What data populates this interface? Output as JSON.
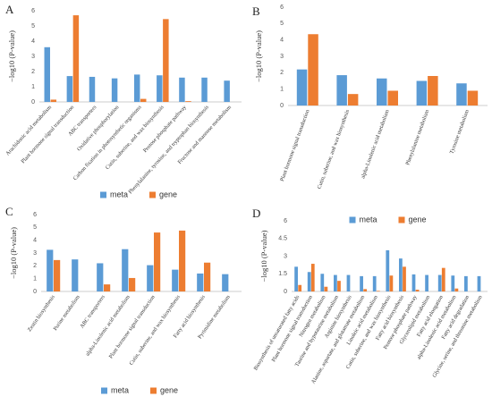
{
  "chart_data": [
    {
      "type": "bar",
      "label": "A",
      "y_label": "−log10 (P-value)",
      "categories": [
        "Arachidonic acid metabolism",
        "Plant hormone signal transduction",
        "ABC transporters",
        "Oxidative phosphorylation",
        "Carbon fixation in photosynthetic organisms",
        "Cutin, suberine, and wax biosynthesis",
        "Pentose phosphate pathway",
        "Phenylalanine, tyrosine, and tryptophan biosynthesis",
        "Fructose and mannose metabolism"
      ],
      "series": [
        {
          "name": "meta",
          "color": "#5b9bd5",
          "values": [
            3.6,
            1.7,
            1.65,
            1.55,
            1.8,
            1.75,
            1.6,
            1.6,
            1.4
          ]
        },
        {
          "name": "gene",
          "color": "#ed7d31",
          "values": [
            0.15,
            5.7,
            0,
            0,
            0.2,
            5.45,
            0.05,
            0,
            0
          ]
        }
      ],
      "ylim": [
        0,
        6
      ],
      "yticks": [
        0,
        1,
        2,
        3,
        4,
        5,
        6
      ],
      "legend": "bottom"
    },
    {
      "type": "bar",
      "label": "B",
      "y_label": "−log10 (P-value)",
      "categories": [
        "Plant hormone signal transduction",
        "Cutin, suberine, and wax biosynthesis",
        "alpha-Linolenic acid metabolism",
        "Phenylalanine metabolism",
        "Tyrosine metabolism"
      ],
      "series": [
        {
          "color": "#5b9bd5",
          "values": [
            2.2,
            1.85,
            1.65,
            1.5,
            1.35
          ]
        },
        {
          "color": "#ed7d31",
          "values": [
            4.35,
            0.7,
            0.9,
            1.8,
            0.9
          ]
        }
      ],
      "ylim": [
        0,
        6
      ],
      "yticks": [
        0,
        1,
        2,
        3,
        4,
        5,
        6
      ]
    },
    {
      "type": "bar",
      "label": "C",
      "y_label": "−log10 (P-value)",
      "categories": [
        "Zeatin biosynthesis",
        "Purine metabolism",
        "ABC transporters",
        "alpha-Linolenic acid metabolism",
        "Plant hormone signal transduction",
        "Cutin, suberine, and wax biosynthesis",
        "Fatty acid biosynthesis",
        "Pyrimidine metabolism"
      ],
      "series": [
        {
          "name": "meta",
          "color": "#5b9bd5",
          "values": [
            3.25,
            2.5,
            2.2,
            3.3,
            2.05,
            1.7,
            1.4,
            1.35
          ]
        },
        {
          "name": "gene",
          "color": "#ed7d31",
          "values": [
            2.45,
            0,
            0.55,
            1.05,
            4.6,
            4.75,
            2.25,
            0
          ]
        }
      ],
      "ylim": [
        0,
        6
      ],
      "yticks": [
        0,
        1,
        2,
        3,
        4,
        5,
        6
      ],
      "legend": "bottom"
    },
    {
      "type": "bar",
      "label": "D",
      "y_label": "−log10 (P-value)",
      "categories": [
        "Biosynthesis of unsaturated fatty acids",
        "Plant hormone signal transduction",
        "Nitrogen metabolism",
        "Taurine and hypotaurine metabolism",
        "Arginine biosynthesis",
        "Alanine, aspartate, and glutamate metabolism",
        "Linoleic acid metabolism",
        "Cutin, suberine, and wax biosynthesis",
        "Fatty acid biosynthesis",
        "Pentose phosphate pathway",
        "Glycerolipid metabolism",
        "Fatty acid elongation",
        "alpha-Linolenic acid metabolism",
        "Fatty acid degradation",
        "Glycine, serine, and threonine metabolism"
      ],
      "series": [
        {
          "name": "meta",
          "color": "#5b9bd5",
          "values": [
            2.1,
            1.65,
            1.5,
            1.4,
            1.4,
            1.3,
            1.3,
            3.5,
            2.8,
            1.45,
            1.4,
            1.4,
            1.35,
            1.3,
            1.3
          ]
        },
        {
          "name": "gene",
          "color": "#ed7d31",
          "values": [
            0.55,
            2.35,
            0.4,
            0.9,
            0,
            0.2,
            0.05,
            1.35,
            2.1,
            0.15,
            0,
            2.0,
            0.25,
            0,
            0
          ]
        }
      ],
      "ylim": [
        0,
        6
      ],
      "yticks": [
        0,
        1.5,
        3,
        4.5,
        6
      ],
      "legend": "top"
    }
  ]
}
